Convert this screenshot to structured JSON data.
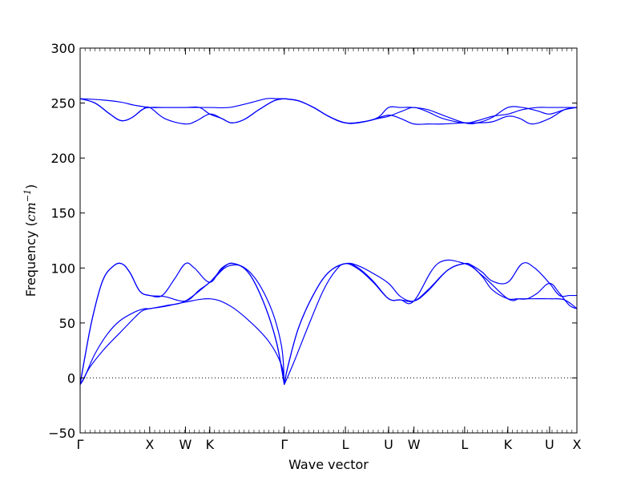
{
  "chart_data": {
    "type": "line",
    "xlabel": "Wave vector",
    "ylabel": "Frequency (cm⁻¹)",
    "ylabel_prefix": "Frequency",
    "ylabel_unit_base": "cm",
    "ylabel_unit_exp": "−1",
    "ylim": [
      -50,
      300
    ],
    "yticks": [
      -50,
      0,
      50,
      100,
      150,
      200,
      250,
      300
    ],
    "xlim": [
      0,
      100
    ],
    "high_symmetry_points": [
      {
        "label": "Γ",
        "x": 0
      },
      {
        "label": "X",
        "x": 14.0
      },
      {
        "label": "W",
        "x": 21.2
      },
      {
        "label": "K",
        "x": 26.1
      },
      {
        "label": "Γ",
        "x": 41.1
      },
      {
        "label": "L",
        "x": 53.4
      },
      {
        "label": "U",
        "x": 62.1
      },
      {
        "label": "W",
        "x": 67.2
      },
      {
        "label": "L",
        "x": 77.4
      },
      {
        "label": "K",
        "x": 86.1
      },
      {
        "label": "U",
        "x": 94.5
      },
      {
        "label": "X",
        "x": 100
      }
    ],
    "zero_line": {
      "y": 0,
      "style": "dotted"
    },
    "grid": false,
    "series": [
      {
        "color": "#0000ff",
        "x": [
          0,
          0.6,
          2,
          5,
          8,
          11,
          12.5,
          14,
          17,
          21.2,
          26.1,
          30,
          34,
          38,
          40.5,
          41.1
        ],
        "y": [
          -6,
          -2,
          10,
          27,
          41,
          55,
          61,
          63,
          65,
          69,
          72,
          66,
          52,
          33,
          12,
          -6
        ]
      },
      {
        "color": "#0000ff",
        "x": [
          0,
          1,
          3,
          5.5,
          8,
          11,
          13,
          14,
          17.5,
          21.2,
          26.1,
          30,
          34,
          38,
          40.5,
          41.1
        ],
        "y": [
          -6,
          2,
          22,
          40,
          52,
          60,
          63,
          63,
          66,
          70,
          87,
          102,
          97,
          68,
          30,
          -6
        ]
      },
      {
        "color": "#0000ff",
        "x": [
          0,
          1,
          2.5,
          4.5,
          6.5,
          8.3,
          10,
          12,
          14,
          17,
          21.2,
          24,
          26.1,
          29,
          31,
          34,
          37,
          39.5,
          41.1
        ],
        "y": [
          -6,
          20,
          55,
          88,
          101,
          104,
          96,
          79,
          75,
          74,
          70,
          80,
          87,
          101,
          104,
          95,
          68,
          33,
          -6
        ]
      },
      {
        "color": "#0000ff",
        "x": [
          0,
          1,
          2.5,
          4.5,
          6.5,
          8.3,
          10,
          12,
          14,
          16.5,
          19,
          21.2,
          23,
          26.1,
          28.5,
          31,
          34,
          37,
          39.5,
          41.1
        ],
        "y": [
          -6,
          20,
          55,
          88,
          101,
          104,
          96,
          79,
          75,
          75,
          90,
          104,
          100,
          87,
          100,
          104,
          95,
          68,
          33,
          -6
        ]
      },
      {
        "color": "#0000ff",
        "x": [
          41.1,
          41.8,
          44,
          47,
          50,
          53.4,
          56,
          59,
          62.1,
          64.5,
          67.2,
          70,
          74,
          77.4,
          79,
          81,
          83,
          86.1,
          88,
          90,
          92,
          94.5,
          96.5,
          98.5,
          100
        ],
        "y": [
          -6,
          10,
          46,
          76,
          96,
          104,
          102,
          95,
          86,
          74,
          70,
          79,
          98,
          104,
          101,
          92,
          80,
          72,
          72,
          72,
          77,
          86,
          77,
          66,
          63
        ]
      },
      {
        "color": "#0000ff",
        "x": [
          41.1,
          41.8,
          44,
          47,
          50,
          53.4,
          56,
          59,
          62.1,
          64.5,
          67.2,
          70,
          74,
          77.4,
          79,
          81,
          83,
          86.1,
          89,
          91.5,
          94.5,
          96.5,
          98.5,
          100
        ],
        "y": [
          -6,
          10,
          46,
          76,
          96,
          104,
          100,
          88,
          72,
          71,
          70,
          80,
          98,
          104,
          102,
          96,
          88,
          87,
          104,
          100,
          86,
          75,
          75,
          75
        ]
      },
      {
        "color": "#0000ff",
        "x": [
          41.1,
          43,
          46,
          49,
          51.5,
          53.4,
          56,
          59,
          62.1,
          64.5,
          67.2,
          72,
          77.4,
          81,
          86.1,
          88.5,
          91,
          94.5,
          97.5,
          100
        ],
        "y": [
          -6,
          14,
          48,
          80,
          98,
          104,
          99,
          87,
          72,
          71,
          70,
          104,
          104,
          93,
          72,
          72,
          72,
          72,
          71,
          63
        ]
      },
      {
        "color": "#0000ff",
        "x": [
          0,
          3,
          6,
          8.3,
          10.5,
          12.5,
          14,
          17,
          21.2,
          23.5,
          26.1,
          28.5,
          30.5,
          33,
          36,
          39,
          41.1
        ],
        "y": [
          254,
          250,
          240,
          234,
          237,
          244,
          246,
          236,
          231,
          234,
          240,
          236,
          232,
          235,
          244,
          252,
          254
        ]
      },
      {
        "color": "#0000ff",
        "x": [
          0,
          3,
          6,
          8.3,
          10.5,
          12.5,
          14,
          17,
          21.2,
          24,
          26.1,
          28.5,
          30.5,
          33,
          36,
          39,
          41.1
        ],
        "y": [
          254,
          250,
          240,
          234,
          237,
          244,
          246,
          246,
          246,
          246,
          240,
          236,
          232,
          235,
          244,
          252,
          254
        ]
      },
      {
        "color": "#0000ff",
        "x": [
          0,
          4,
          8,
          11,
          14,
          17,
          21.2,
          26.1,
          30,
          34,
          37.5,
          39.5,
          41.1
        ],
        "y": [
          254,
          253,
          251,
          248,
          246,
          246,
          246,
          246,
          246,
          250,
          254,
          254,
          254
        ]
      },
      {
        "color": "#0000ff",
        "x": [
          41.1,
          44,
          47,
          50,
          53.4,
          56,
          59,
          62.1,
          64.5,
          67.2,
          70,
          73,
          77.4,
          80,
          83,
          86.1,
          88.5,
          91,
          94.5,
          97.5,
          100
        ],
        "y": [
          254,
          252,
          246,
          238,
          232,
          232,
          235,
          239,
          236,
          231,
          231,
          231,
          232,
          232,
          233,
          238,
          236,
          231,
          236,
          244,
          246
        ]
      },
      {
        "color": "#0000ff",
        "x": [
          41.1,
          44,
          47,
          50,
          53.4,
          57,
          60,
          62.1,
          64.5,
          67.2,
          70,
          73,
          77.4,
          80,
          83,
          86.1,
          89,
          92,
          94.5,
          97.5,
          100
        ],
        "y": [
          254,
          252,
          246,
          238,
          232,
          233,
          237,
          246,
          246,
          246,
          244,
          239,
          232,
          232,
          237,
          246,
          246,
          243,
          240,
          244,
          246
        ]
      },
      {
        "color": "#0000ff",
        "x": [
          41.1,
          44,
          47,
          50,
          53.4,
          57,
          60,
          62.1,
          65,
          67.2,
          70,
          73,
          77.4,
          80,
          83,
          86.1,
          89,
          92,
          94.5,
          97.5,
          100
        ],
        "y": [
          254,
          252,
          246,
          238,
          232,
          233,
          236,
          238,
          243,
          246,
          242,
          236,
          232,
          234,
          238,
          240,
          244,
          246,
          246,
          246,
          246
        ]
      }
    ]
  }
}
